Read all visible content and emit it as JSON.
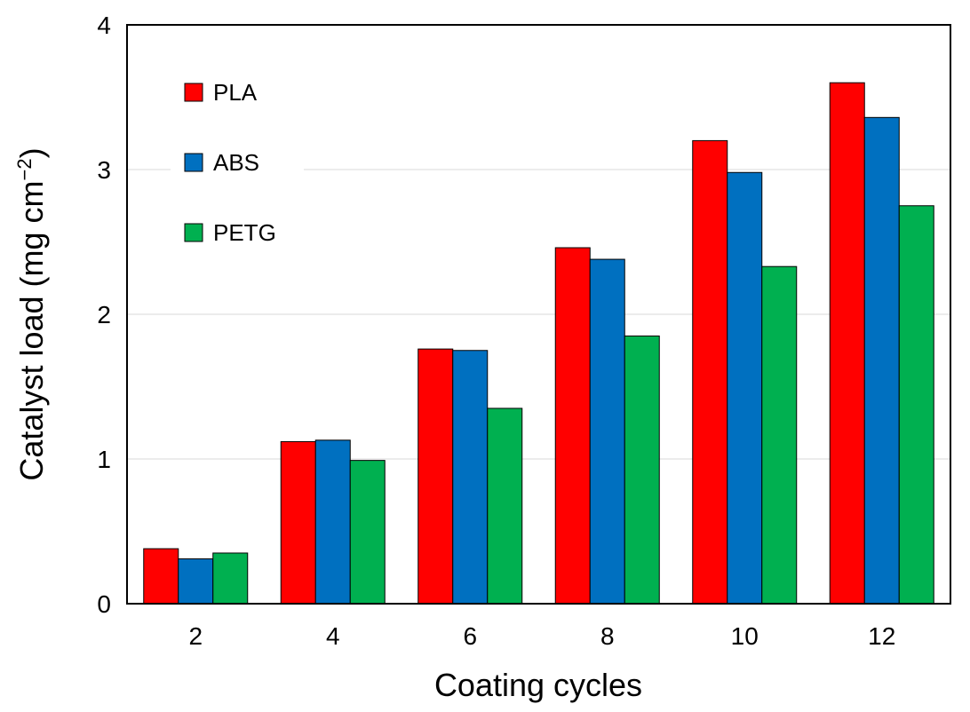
{
  "chart_data": {
    "type": "bar",
    "title": "",
    "xlabel": "Coating cycles",
    "ylabel_main": "Catalyst load (mg cm",
    "ylabel_sup": "−2",
    "ylabel_close": ")",
    "categories": [
      "2",
      "4",
      "6",
      "8",
      "10",
      "12"
    ],
    "series": [
      {
        "name": "PLA",
        "color": "#ff0000",
        "values": [
          0.38,
          1.12,
          1.76,
          2.46,
          3.2,
          3.6
        ]
      },
      {
        "name": "ABS",
        "color": "#0070c0",
        "values": [
          0.31,
          1.13,
          1.75,
          2.38,
          2.98,
          3.36
        ]
      },
      {
        "name": "PETG",
        "color": "#00b050",
        "values": [
          0.35,
          0.99,
          1.35,
          1.85,
          2.33,
          2.75
        ]
      }
    ],
    "ylim": [
      0,
      4
    ],
    "yticks": [
      "0",
      "1",
      "2",
      "3",
      "4"
    ],
    "grid": "horizontal",
    "legend_position": "top-left"
  }
}
